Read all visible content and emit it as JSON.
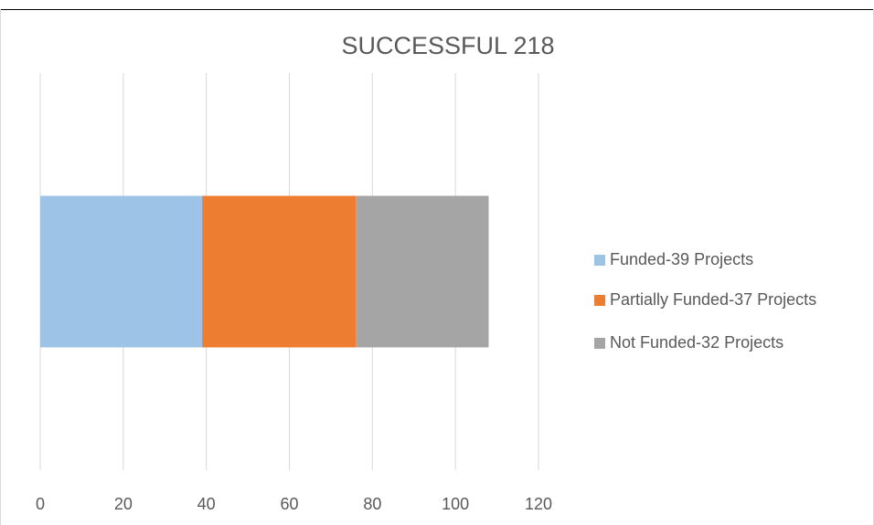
{
  "chart_data": {
    "type": "stacked-bar-horizontal",
    "title": "SUCCESSFUL 218",
    "categories": [
      null
    ],
    "series": [
      {
        "name": "Funded-39 Projects",
        "color": "#9dc3e6",
        "values": [
          39
        ]
      },
      {
        "name": "Partially Funded-37 Projects",
        "color": "#ed7d31",
        "values": [
          37
        ]
      },
      {
        "name": "Not Funded-32 Projects",
        "color": "#a5a5a5",
        "values": [
          32
        ]
      }
    ],
    "xlim": [
      0,
      120
    ],
    "xticks": [
      0,
      20,
      40,
      60,
      80,
      100,
      120
    ],
    "grid": true,
    "legend": "right"
  }
}
